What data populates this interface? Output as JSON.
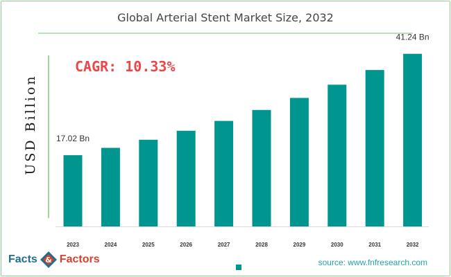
{
  "colors": {
    "bar": "#00968f",
    "cagr": "#e8474b",
    "frame": "#8fd18a"
  },
  "brand": {
    "word1": "Facts",
    "word2": "Factors",
    "connector": "&",
    "logo_icon": "facts-factors-logo-icon"
  },
  "source_text": "source: www.fnfresearch.com",
  "cagr_text": "CAGR:  10.33%",
  "chart_data": {
    "type": "bar",
    "title": "Global Arterial Stent Market Size, 2032",
    "xlabel": "",
    "ylabel": "USD Billion",
    "categories": [
      "2023",
      "2024",
      "2025",
      "2026",
      "2027",
      "2028",
      "2029",
      "2030",
      "2031",
      "2032"
    ],
    "values": [
      17.02,
      18.78,
      20.72,
      22.86,
      25.22,
      27.82,
      30.7,
      33.87,
      37.37,
      41.24
    ],
    "data_labels": {
      "2023": "17.02 Bn",
      "2032": "41.24 Bn"
    },
    "ylim": [
      0,
      45
    ],
    "grid": false,
    "legend": {
      "entries": [
        ""
      ],
      "placement": "bottom"
    },
    "annotations": [
      "CAGR:  10.33%"
    ]
  }
}
